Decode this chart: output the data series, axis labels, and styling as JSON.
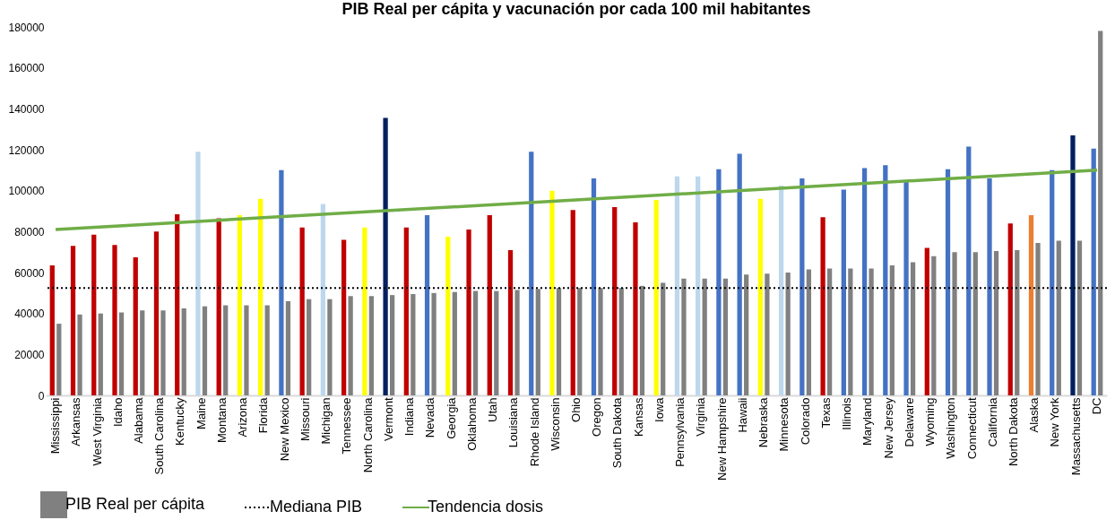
{
  "chart_data": {
    "type": "bar",
    "title": "PIB Real per cápita y vacunación por cada 100 mil habitantes",
    "categories": [
      "Mississippi",
      "Arkansas",
      "West Virginia",
      "Idaho",
      "Alabama",
      "South Carolina",
      "Kentucky",
      "Maine",
      "Montana",
      "Arizona",
      "Florida",
      "New Mexico",
      "Missouri",
      "Michigan",
      "Tennessee",
      "North Carolina",
      "Vermont",
      "Indiana",
      "Nevada",
      "Georgia",
      "Oklahoma",
      "Utah",
      "Louisiana",
      "Rhode Island",
      "Wisconsin",
      "Ohio",
      "Oregon",
      "South Dakota",
      "Kansas",
      "Iowa",
      "Pennsylvania",
      "Virginia",
      "New Hampshire",
      "Hawaii",
      "Nebraska",
      "Minnesota",
      "Colorado",
      "Texas",
      "Illinois",
      "Maryland",
      "New Jersey",
      "Delaware",
      "Wyoming",
      "Washington",
      "Connecticut",
      "California",
      "North Dakota",
      "Alaska",
      "New York",
      "Massachusetts",
      "DC"
    ],
    "series": [
      {
        "values": [
          63500,
          73000,
          78500,
          73500,
          67500,
          80000,
          88500,
          119000,
          86500,
          88000,
          96000,
          110000,
          82000,
          93500,
          76000,
          82000,
          135500,
          82000,
          88000,
          77500,
          81000,
          88000,
          71000,
          119000,
          100000,
          90500,
          106000,
          92000,
          84500,
          95500,
          107000,
          107000,
          110500,
          118000,
          96000,
          102500,
          106000,
          87000,
          100500,
          111000,
          112500,
          104500,
          72000,
          110500,
          121500,
          106000,
          84000,
          88000,
          110000,
          127000,
          120500
        ],
        "colors": [
          "#c00000",
          "#c00000",
          "#c00000",
          "#c00000",
          "#c00000",
          "#c00000",
          "#c00000",
          "#bdd7ee",
          "#c00000",
          "#ffff00",
          "#ffff00",
          "#4472c4",
          "#c00000",
          "#bdd7ee",
          "#c00000",
          "#ffff00",
          "#002060",
          "#c00000",
          "#4472c4",
          "#ffff00",
          "#c00000",
          "#c00000",
          "#c00000",
          "#4472c4",
          "#ffff00",
          "#c00000",
          "#4472c4",
          "#c00000",
          "#c00000",
          "#ffff00",
          "#bdd7ee",
          "#bdd7ee",
          "#4472c4",
          "#4472c4",
          "#ffff00",
          "#bdd7ee",
          "#4472c4",
          "#c00000",
          "#4472c4",
          "#4472c4",
          "#4472c4",
          "#4472c4",
          "#c00000",
          "#4472c4",
          "#4472c4",
          "#4472c4",
          "#c00000",
          "#ed7d31",
          "#4472c4",
          "#002060",
          "#4472c4"
        ]
      },
      {
        "name": "PIB Real per cápita",
        "color": "#808080",
        "values": [
          35000,
          39500,
          40000,
          40500,
          41500,
          41500,
          42500,
          43500,
          44000,
          44000,
          44000,
          46000,
          47000,
          47000,
          48500,
          48500,
          49000,
          49500,
          50000,
          50500,
          51000,
          51000,
          51500,
          52000,
          52500,
          52500,
          52500,
          52500,
          53500,
          55000,
          57000,
          57000,
          57000,
          59000,
          59500,
          60000,
          61500,
          62000,
          62000,
          62000,
          63500,
          65000,
          68000,
          70000,
          70000,
          70500,
          71000,
          74500,
          75500,
          75500,
          178000
        ]
      },
      {
        "name": "Tendencia dosis",
        "type": "line",
        "color": "#70ad47",
        "x": [
          "Mississippi",
          "DC"
        ],
        "values": [
          81000,
          110000
        ]
      }
    ],
    "ref_lines": [
      {
        "axis": "y",
        "value": 52500,
        "label": "Mediana PIB",
        "color": "#000000",
        "line_style": "dotted"
      }
    ],
    "ylim": [
      0,
      180000
    ],
    "yticks": [
      0,
      20000,
      40000,
      60000,
      80000,
      100000,
      120000,
      140000,
      160000,
      180000
    ],
    "legend": "bottom"
  }
}
